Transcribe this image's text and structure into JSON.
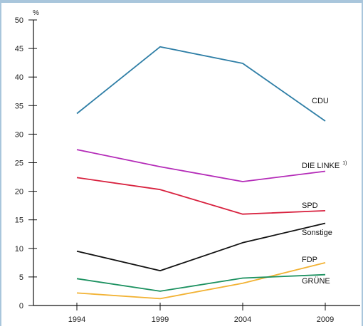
{
  "chart_data": {
    "type": "line",
    "ylabel": "%",
    "xlabel": "",
    "x": [
      "1994",
      "1999",
      "2004",
      "2009"
    ],
    "ylim": [
      0,
      50
    ],
    "yticks": [
      0,
      5,
      10,
      15,
      20,
      25,
      30,
      35,
      40,
      45,
      50
    ],
    "grid": false,
    "series": [
      {
        "name": "CDU",
        "color": "#2e7ea6",
        "values": [
          33.6,
          45.3,
          42.4,
          32.3
        ]
      },
      {
        "name": "DIE LINKE",
        "footnote": "1)",
        "color": "#b42bb8",
        "values": [
          27.3,
          24.3,
          21.7,
          23.5
        ]
      },
      {
        "name": "SPD",
        "color": "#d8223f",
        "values": [
          22.4,
          20.3,
          16.0,
          16.6
        ]
      },
      {
        "name": "Sonstige",
        "color": "#111111",
        "values": [
          9.5,
          6.1,
          11.0,
          14.4
        ]
      },
      {
        "name": "FDP",
        "color": "#f2b233",
        "values": [
          2.2,
          1.2,
          3.9,
          7.5
        ]
      },
      {
        "name": "GRÜNE",
        "color": "#1c9160",
        "values": [
          4.7,
          2.5,
          4.8,
          5.4
        ]
      }
    ]
  }
}
